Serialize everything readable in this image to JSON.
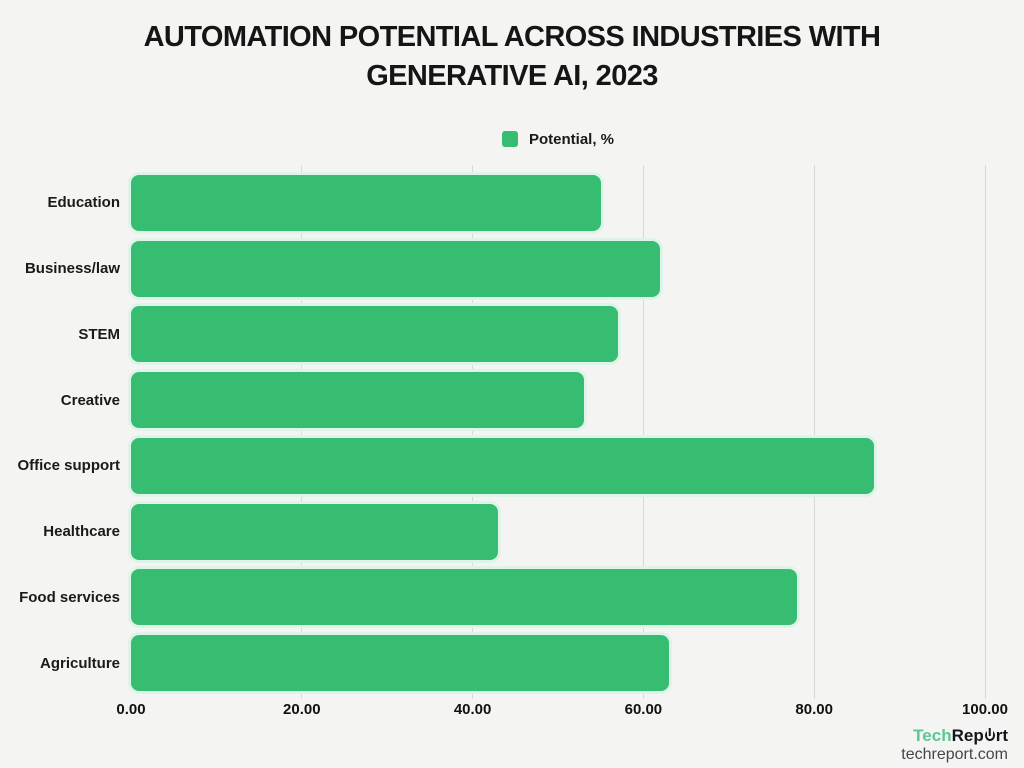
{
  "chart_data": {
    "type": "bar",
    "orientation": "horizontal",
    "title_line1": "AUTOMATION POTENTIAL ACROSS INDUSTRIES WITH",
    "title_line2": "GENERATIVE AI, 2023",
    "legend": "Potential, %",
    "legend_position": "top-center",
    "categories": [
      "Education",
      "Business/law",
      "STEM",
      "Creative",
      "Office support",
      "Healthcare",
      "Food services",
      "Agriculture"
    ],
    "values": [
      55,
      62,
      57,
      53,
      87,
      43,
      78,
      63
    ],
    "xlim": [
      0,
      100
    ],
    "xtick_labels": [
      "0.00",
      "20.00",
      "40.00",
      "60.00",
      "80.00",
      "100.00"
    ],
    "grid": "vertical-only",
    "colors": {
      "bar": "#36bd72",
      "bar_halo": "#def4e8",
      "gridline": "#d8d8d6",
      "background": "#f4f4f2",
      "text": "#1a1a1a"
    }
  },
  "footer": {
    "brand_green": "Tech",
    "brand_dark_pre": "Rep",
    "brand_dark_post": "rt",
    "site": "techreport.com"
  }
}
